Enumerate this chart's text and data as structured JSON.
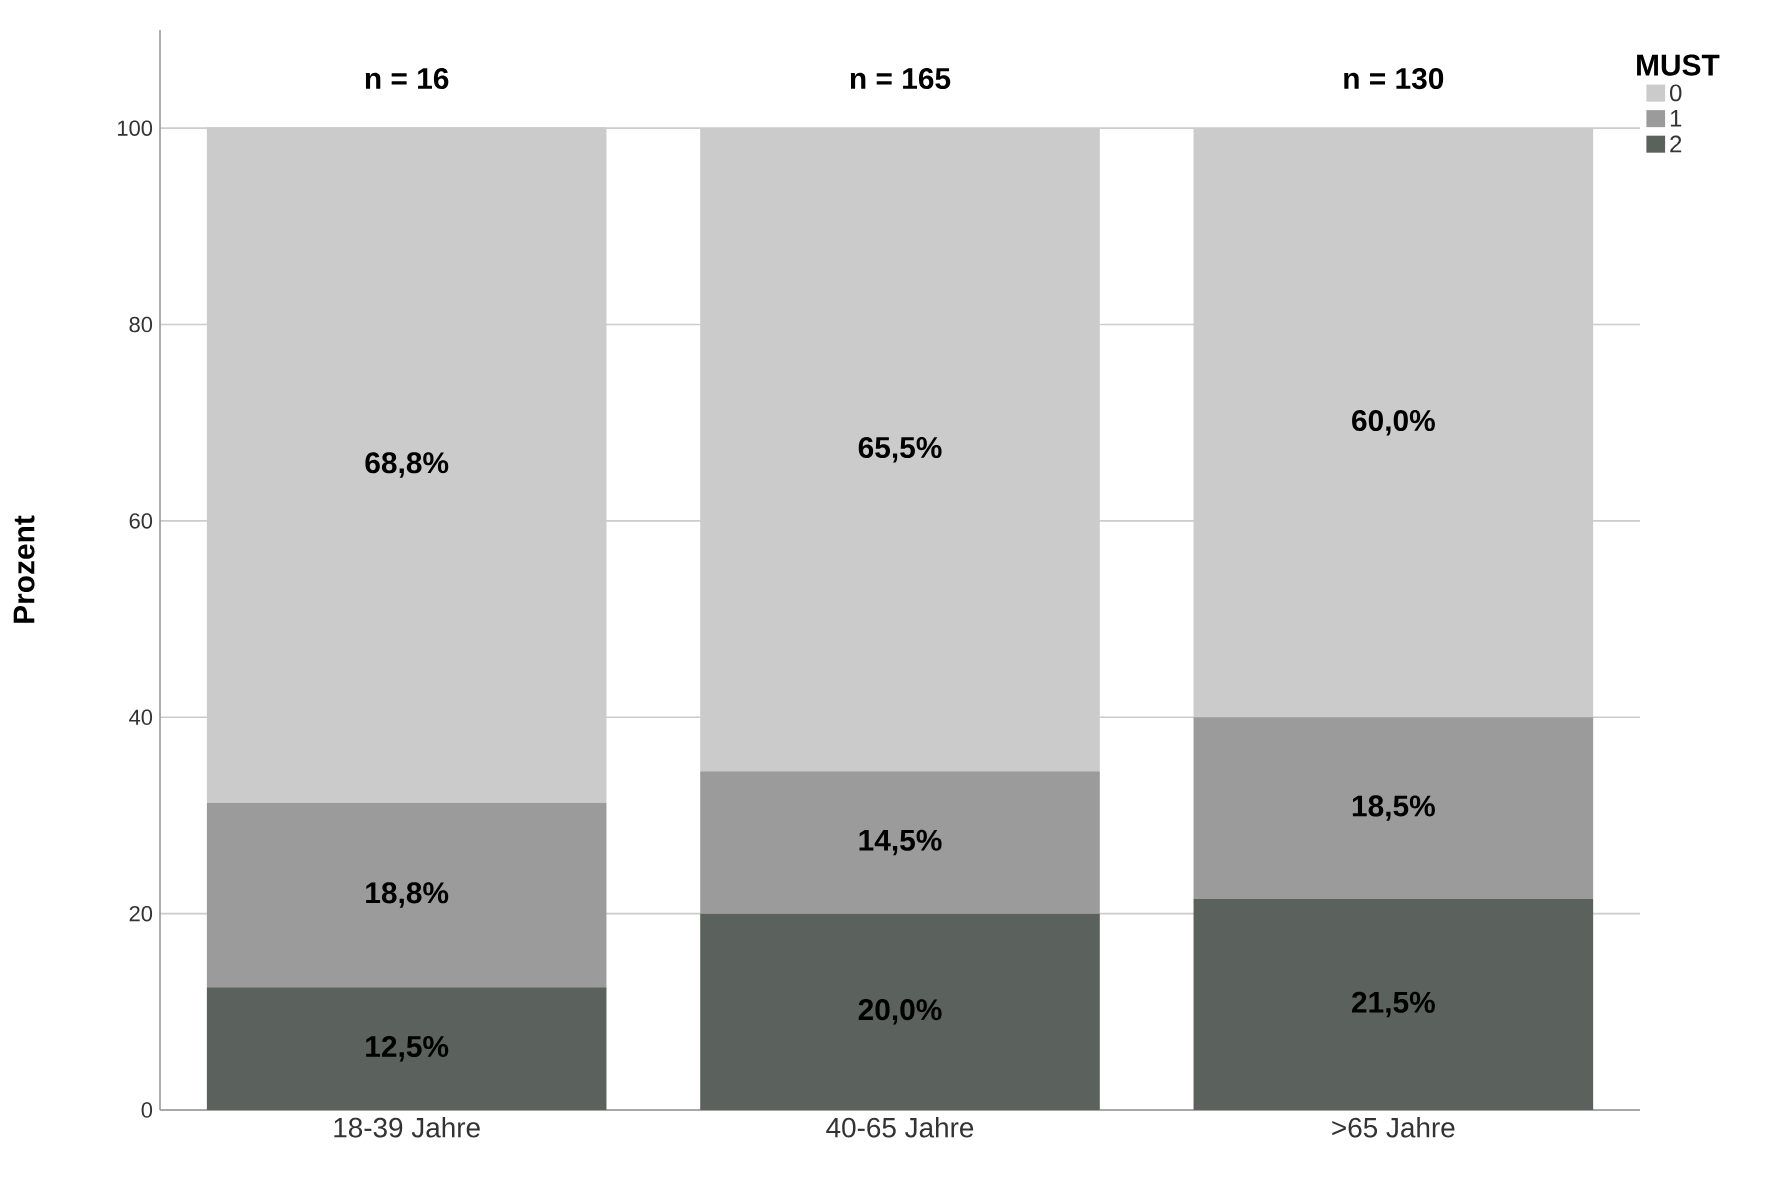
{
  "chart_data": {
    "type": "bar",
    "stacked": true,
    "ylabel": "Prozent",
    "legend_title": "MUST",
    "legend": "top right",
    "grid": "y",
    "categories": [
      "18-39 Jahre",
      "40-65 Jahre",
      ">65 Jahre"
    ],
    "series": [
      {
        "name": "2",
        "color": "#5b625d",
        "values": [
          12.5,
          20.0,
          21.5
        ],
        "value_labels": [
          "12,5%",
          "20,0%",
          "21,5%"
        ]
      },
      {
        "name": "1",
        "color": "#9b9b9b",
        "values": [
          18.8,
          14.5,
          18.5
        ],
        "value_labels": [
          "18,8%",
          "14,5%",
          "18,5%"
        ]
      },
      {
        "name": "0",
        "color": "#cbcbcb",
        "values": [
          68.8,
          65.5,
          60.0
        ],
        "value_labels": [
          "68,8%",
          "65,5%",
          "60,0%"
        ]
      }
    ],
    "ylim": [
      0,
      110
    ],
    "yticks": [
      0,
      20,
      40,
      60,
      80,
      100
    ],
    "annotations": [
      {
        "text": "n = 16",
        "x": "18-39 Jahre",
        "y": 100
      },
      {
        "text": "n = 165",
        "x": "40-65 Jahre",
        "y": 100
      },
      {
        "text": "n = 130",
        "x": ">65 Jahre",
        "y": 100
      }
    ]
  }
}
